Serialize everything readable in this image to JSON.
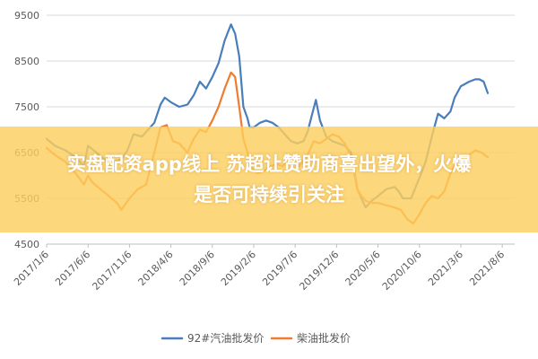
{
  "chart_data": {
    "type": "line",
    "ylim": [
      4500,
      9500
    ],
    "y_ticks": [
      4500,
      5500,
      6500,
      7500,
      8500,
      9500
    ],
    "x_tick_labels": [
      "2017/1/6",
      "2017/6/6",
      "2017/11/6",
      "2018/4/6",
      "2018/9/6",
      "2019/2/6",
      "2019/7/6",
      "2019/12/6",
      "2020/5/6",
      "2020/10/6",
      "2021/3/6",
      "2021/8/6"
    ],
    "grid": "horizontal",
    "legend_position": "bottom",
    "series": [
      {
        "name": "92#汽油批发价",
        "color": "#4a7ebb",
        "points": [
          [
            0,
            6800
          ],
          [
            0.2,
            6650
          ],
          [
            0.45,
            6550
          ],
          [
            0.7,
            6400
          ],
          [
            0.9,
            6200
          ],
          [
            1.0,
            6650
          ],
          [
            1.2,
            6500
          ],
          [
            1.4,
            6350
          ],
          [
            1.6,
            6300
          ],
          [
            1.8,
            6350
          ],
          [
            1.95,
            6550
          ],
          [
            2.1,
            6900
          ],
          [
            2.3,
            6850
          ],
          [
            2.45,
            7000
          ],
          [
            2.6,
            7150
          ],
          [
            2.75,
            7550
          ],
          [
            2.85,
            7700
          ],
          [
            3.0,
            7600
          ],
          [
            3.2,
            7500
          ],
          [
            3.4,
            7550
          ],
          [
            3.55,
            7750
          ],
          [
            3.7,
            8050
          ],
          [
            3.85,
            7900
          ],
          [
            4.0,
            8150
          ],
          [
            4.15,
            8450
          ],
          [
            4.3,
            8950
          ],
          [
            4.45,
            9300
          ],
          [
            4.55,
            9100
          ],
          [
            4.65,
            8600
          ],
          [
            4.75,
            7500
          ],
          [
            4.85,
            7250
          ],
          [
            4.9,
            7050
          ],
          [
            5.0,
            7050
          ],
          [
            5.15,
            7150
          ],
          [
            5.3,
            7200
          ],
          [
            5.45,
            7150
          ],
          [
            5.6,
            7050
          ],
          [
            5.75,
            6900
          ],
          [
            5.9,
            6750
          ],
          [
            6.05,
            6700
          ],
          [
            6.2,
            6750
          ],
          [
            6.3,
            6950
          ],
          [
            6.4,
            7300
          ],
          [
            6.5,
            7650
          ],
          [
            6.6,
            7200
          ],
          [
            6.75,
            6850
          ],
          [
            6.9,
            6750
          ],
          [
            7.05,
            6700
          ],
          [
            7.2,
            6650
          ],
          [
            7.35,
            6500
          ],
          [
            7.5,
            5700
          ],
          [
            7.6,
            5500
          ],
          [
            7.7,
            5300
          ],
          [
            7.85,
            5450
          ],
          [
            8.0,
            5550
          ],
          [
            8.2,
            5700
          ],
          [
            8.4,
            5750
          ],
          [
            8.5,
            5650
          ],
          [
            8.6,
            5500
          ],
          [
            8.8,
            5500
          ],
          [
            9.0,
            5950
          ],
          [
            9.15,
            6300
          ],
          [
            9.3,
            6850
          ],
          [
            9.45,
            7350
          ],
          [
            9.6,
            7250
          ],
          [
            9.75,
            7400
          ],
          [
            9.85,
            7700
          ],
          [
            10.0,
            7950
          ],
          [
            10.2,
            8050
          ],
          [
            10.35,
            8100
          ],
          [
            10.45,
            8100
          ],
          [
            10.55,
            8050
          ],
          [
            10.65,
            7800
          ]
        ]
      },
      {
        "name": "柴油批发价",
        "color": "#ed7d31",
        "points": [
          [
            0,
            6600
          ],
          [
            0.2,
            6450
          ],
          [
            0.45,
            6300
          ],
          [
            0.7,
            6050
          ],
          [
            0.9,
            5800
          ],
          [
            1.0,
            6000
          ],
          [
            1.1,
            5850
          ],
          [
            1.3,
            5700
          ],
          [
            1.5,
            5550
          ],
          [
            1.7,
            5400
          ],
          [
            1.8,
            5250
          ],
          [
            2.0,
            5500
          ],
          [
            2.2,
            5700
          ],
          [
            2.4,
            5800
          ],
          [
            2.6,
            6500
          ],
          [
            2.75,
            7050
          ],
          [
            2.9,
            7100
          ],
          [
            3.05,
            6750
          ],
          [
            3.2,
            6700
          ],
          [
            3.4,
            6500
          ],
          [
            3.55,
            6800
          ],
          [
            3.7,
            7000
          ],
          [
            3.85,
            6950
          ],
          [
            4.0,
            7200
          ],
          [
            4.15,
            7500
          ],
          [
            4.3,
            7900
          ],
          [
            4.45,
            8250
          ],
          [
            4.55,
            8150
          ],
          [
            4.65,
            7500
          ],
          [
            4.75,
            6800
          ],
          [
            4.85,
            6500
          ],
          [
            4.95,
            6150
          ],
          [
            5.1,
            6050
          ],
          [
            5.25,
            6100
          ],
          [
            5.4,
            6200
          ],
          [
            5.55,
            6250
          ],
          [
            5.7,
            6200
          ],
          [
            5.85,
            6400
          ],
          [
            6.0,
            6350
          ],
          [
            6.1,
            6200
          ],
          [
            6.3,
            6450
          ],
          [
            6.45,
            6750
          ],
          [
            6.6,
            6700
          ],
          [
            6.75,
            6800
          ],
          [
            6.9,
            6900
          ],
          [
            7.05,
            6850
          ],
          [
            7.2,
            6700
          ],
          [
            7.35,
            6400
          ],
          [
            7.5,
            5700
          ],
          [
            7.6,
            5550
          ],
          [
            7.7,
            5450
          ],
          [
            7.85,
            5400
          ],
          [
            8.0,
            5400
          ],
          [
            8.2,
            5350
          ],
          [
            8.4,
            5300
          ],
          [
            8.55,
            5250
          ],
          [
            8.7,
            5050
          ],
          [
            8.85,
            4950
          ],
          [
            9.0,
            5150
          ],
          [
            9.15,
            5400
          ],
          [
            9.3,
            5550
          ],
          [
            9.45,
            5500
          ],
          [
            9.6,
            5650
          ],
          [
            9.75,
            6050
          ],
          [
            9.9,
            6300
          ],
          [
            10.05,
            6400
          ],
          [
            10.2,
            6450
          ],
          [
            10.35,
            6550
          ],
          [
            10.5,
            6500
          ],
          [
            10.65,
            6400
          ]
        ]
      }
    ]
  },
  "overlay": {
    "line1": "实盘配资app线上 苏超让赞助商喜出望外，火爆",
    "line2": "是否可持续引关注"
  }
}
